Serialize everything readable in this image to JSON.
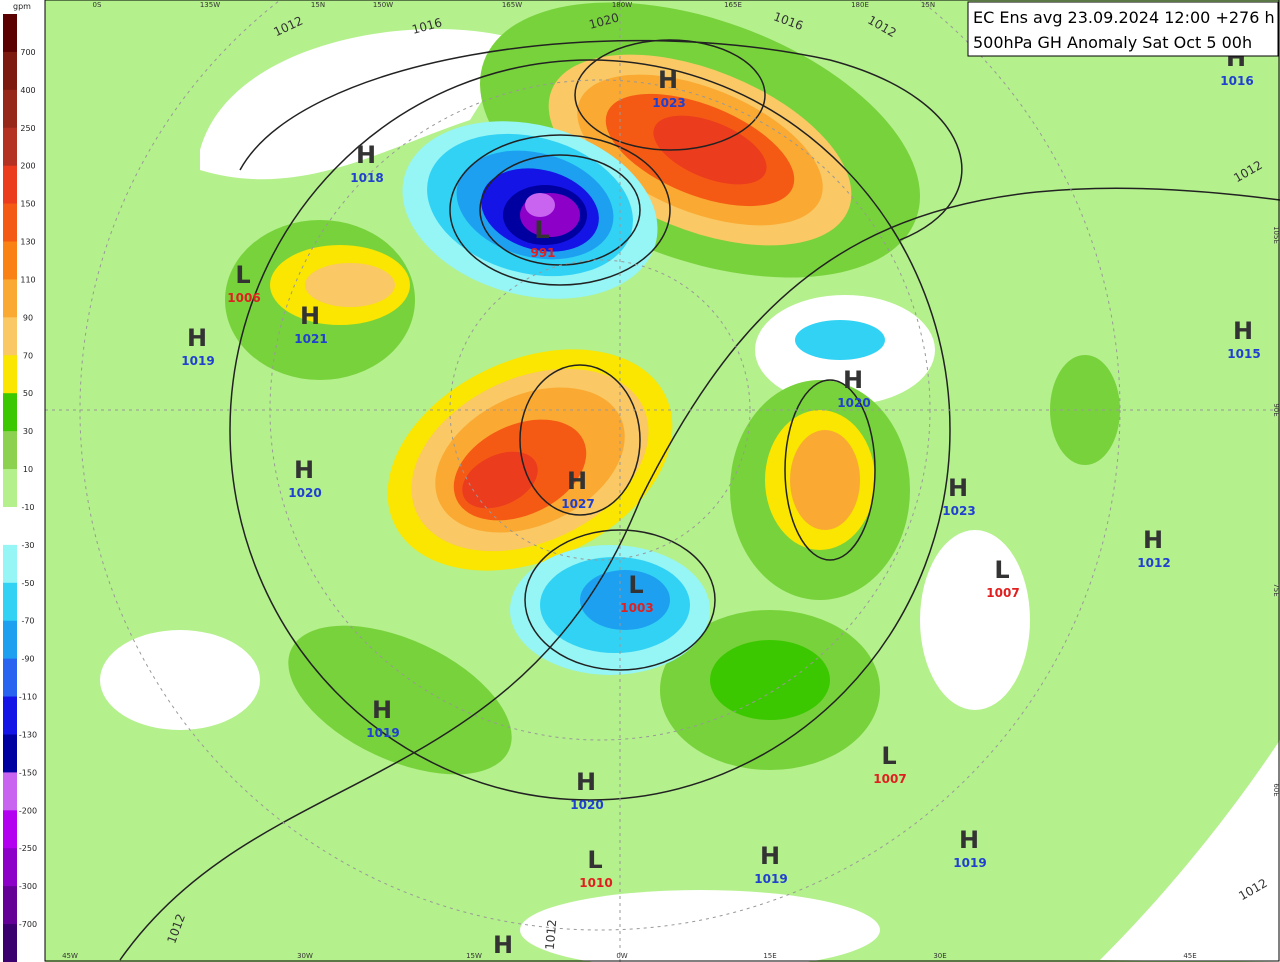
{
  "header": {
    "line1": "EC Ens avg 23.09.2024 12:00 +276 h",
    "line2": "500hPa GH Anomaly Sat Oct 5 00h"
  },
  "colorbar": {
    "unit": "gpm",
    "labels": [
      700,
      400,
      250,
      200,
      150,
      130,
      110,
      90,
      70,
      50,
      30,
      10,
      -10,
      -30,
      -50,
      -70,
      -90,
      -110,
      -130,
      -150,
      -200,
      -250,
      -300,
      -700
    ],
    "colors": [
      "#5a0000",
      "#7d1a10",
      "#96281a",
      "#b43222",
      "#eb3c1e",
      "#f55a14",
      "#fa8214",
      "#faaa32",
      "#fac864",
      "#fae600",
      "#3cc800",
      "#8cd250",
      "#b4f08c",
      "#ffffff",
      "#96f5f5",
      "#32d2f5",
      "#1ea0f0",
      "#2864f0",
      "#1414e6",
      "#0000a0",
      "#c864f0",
      "#b400f0",
      "#8c00c8",
      "#640096",
      "#3c006e"
    ]
  },
  "centers": [
    {
      "letter": "H",
      "value": 1023
    },
    {
      "letter": "H",
      "value": 1018
    },
    {
      "letter": "L",
      "value": 991
    },
    {
      "letter": "L",
      "value": 1006
    },
    {
      "letter": "H",
      "value": 1021
    },
    {
      "letter": "H",
      "value": 1019
    },
    {
      "letter": "H",
      "value": 1020
    },
    {
      "letter": "H",
      "value": 1015
    },
    {
      "letter": "H",
      "value": 1016
    },
    {
      "letter": "H",
      "value": 1020
    },
    {
      "letter": "H",
      "value": 1027
    },
    {
      "letter": "H",
      "value": 1023
    },
    {
      "letter": "H",
      "value": 1012
    },
    {
      "letter": "L",
      "value": 1007
    },
    {
      "letter": "L",
      "value": 1003
    },
    {
      "letter": "H",
      "value": 1019
    },
    {
      "letter": "L",
      "value": 1007
    },
    {
      "letter": "H",
      "value": 1020
    },
    {
      "letter": "L",
      "value": 1010
    },
    {
      "letter": "H",
      "value": 1019
    },
    {
      "letter": "H",
      "value": 1019
    },
    {
      "letter": "H"
    }
  ],
  "isobar_labels": [
    1012,
    1016,
    1020,
    1016,
    1012,
    1012,
    1012,
    1012,
    1012
  ],
  "lon_labels_top": [
    "0S",
    "135W",
    "15N",
    "150W",
    "165W",
    "180W",
    "165E",
    "180E",
    "15N"
  ],
  "lon_labels_bottom": [
    "45W",
    "30W",
    "15W",
    "0W",
    "15E",
    "30E",
    "45E"
  ],
  "edge_labels_right": [
    "105E",
    "90E",
    "75E",
    "60E"
  ]
}
